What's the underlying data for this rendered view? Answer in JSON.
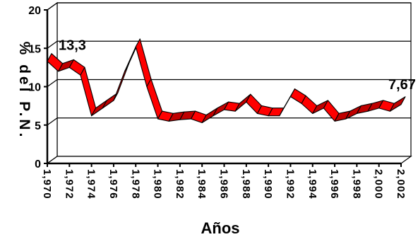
{
  "chart_data": {
    "type": "line",
    "title": "",
    "xlabel": "Años",
    "ylabel": "% del P.N.",
    "ylim": [
      0,
      20
    ],
    "yticks": [
      0,
      5,
      10,
      15,
      20
    ],
    "x": [
      1970,
      1971,
      1972,
      1973,
      1974,
      1975,
      1976,
      1977,
      1978,
      1979,
      1980,
      1981,
      1982,
      1983,
      1984,
      1985,
      1986,
      1987,
      1988,
      1989,
      1990,
      1991,
      1992,
      1993,
      1994,
      1995,
      1996,
      1997,
      1998,
      1999,
      2000,
      2001,
      2002
    ],
    "xtick_labels": [
      "1,970",
      "1,972",
      "1,974",
      "1,976",
      "1,978",
      "1,980",
      "1,982",
      "1,984",
      "1,986",
      "1,988",
      "1,990",
      "1,992",
      "1,994",
      "1,996",
      "1,998",
      "2,000",
      "2,002"
    ],
    "series": [
      {
        "values": [
          13.3,
          12.0,
          12.5,
          11.5,
          6.2,
          7.2,
          8.2,
          12.0,
          15.2,
          10.0,
          5.8,
          5.5,
          5.7,
          5.8,
          5.3,
          6.2,
          7.0,
          6.8,
          8.0,
          6.5,
          6.2,
          6.2,
          8.7,
          7.8,
          6.5,
          7.2,
          5.5,
          5.8,
          6.5,
          6.8,
          7.2,
          6.8,
          7.67
        ],
        "color": "#ff0000"
      }
    ],
    "data_labels": [
      {
        "x": 1970,
        "text": "13,3"
      },
      {
        "x": 2002,
        "text": "7,67"
      }
    ],
    "grid": true
  }
}
